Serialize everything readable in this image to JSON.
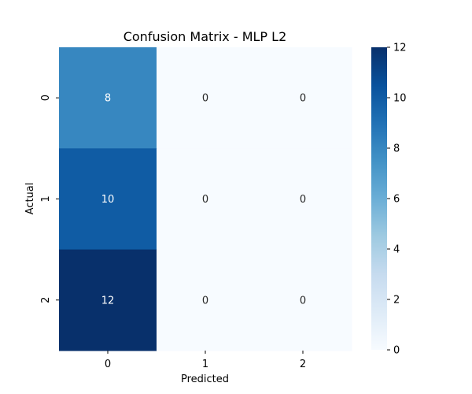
{
  "chart_data": {
    "type": "heatmap",
    "title": "Confusion Matrix - MLP L2",
    "xlabel": "Predicted",
    "ylabel": "Actual",
    "x_categories": [
      "0",
      "1",
      "2"
    ],
    "y_categories": [
      "0",
      "1",
      "2"
    ],
    "values": [
      [
        8,
        0,
        0
      ],
      [
        10,
        0,
        0
      ],
      [
        12,
        0,
        0
      ]
    ],
    "colorbar": {
      "range": [
        0,
        12
      ],
      "ticks": [
        "0",
        "2",
        "4",
        "6",
        "8",
        "10",
        "12"
      ]
    },
    "colormap": "Blues",
    "colors": {
      "low": "#f7fbff",
      "high": "#08306b",
      "text_dark": "#262626",
      "text_light": "#ffffff"
    },
    "grid": false,
    "legend": "right colorbar"
  }
}
